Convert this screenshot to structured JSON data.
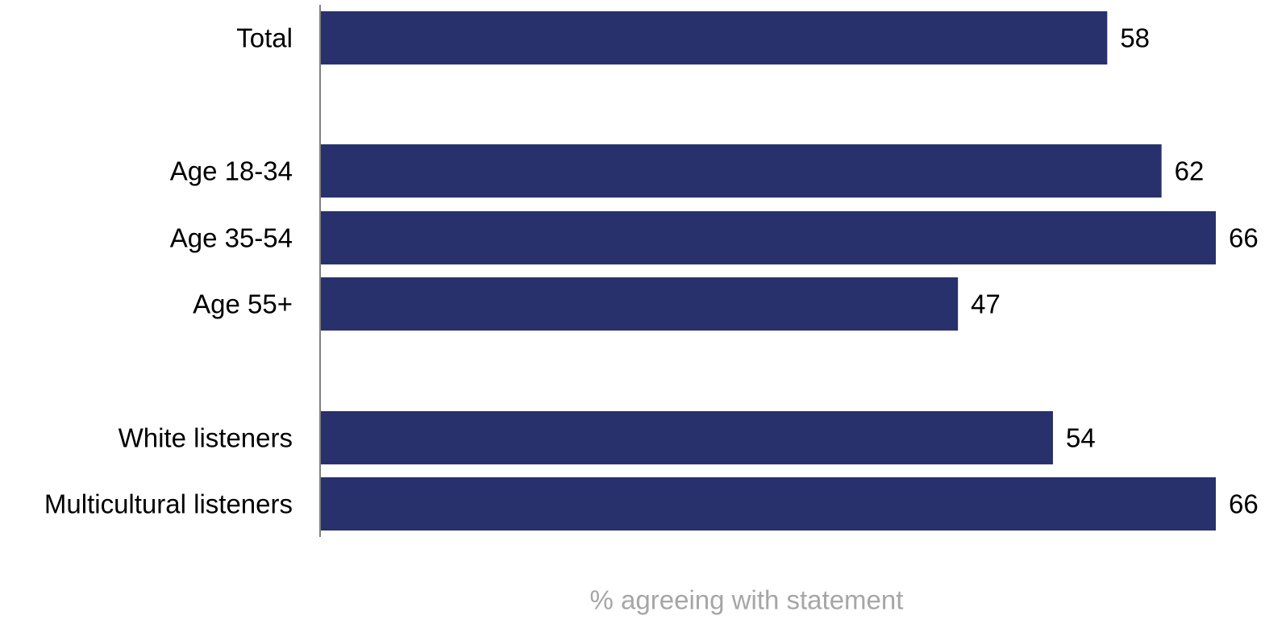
{
  "chart_data": {
    "type": "bar",
    "orientation": "horizontal",
    "categories": [
      "Total",
      "Age 18-34",
      "Age 35-54",
      "Age 55+",
      "White listeners",
      "Multicultural listeners"
    ],
    "values": [
      58,
      62,
      66,
      47,
      54,
      66
    ],
    "title": "",
    "xlabel": "% agreeing with statement",
    "ylabel": "",
    "xlim": [
      0,
      66
    ],
    "grid": false,
    "legend": "none",
    "data_labels": true,
    "colors": {
      "bar": "#28316b",
      "axis": "#808080",
      "xlabel": "#a6a6a6",
      "text": "#000000"
    }
  }
}
